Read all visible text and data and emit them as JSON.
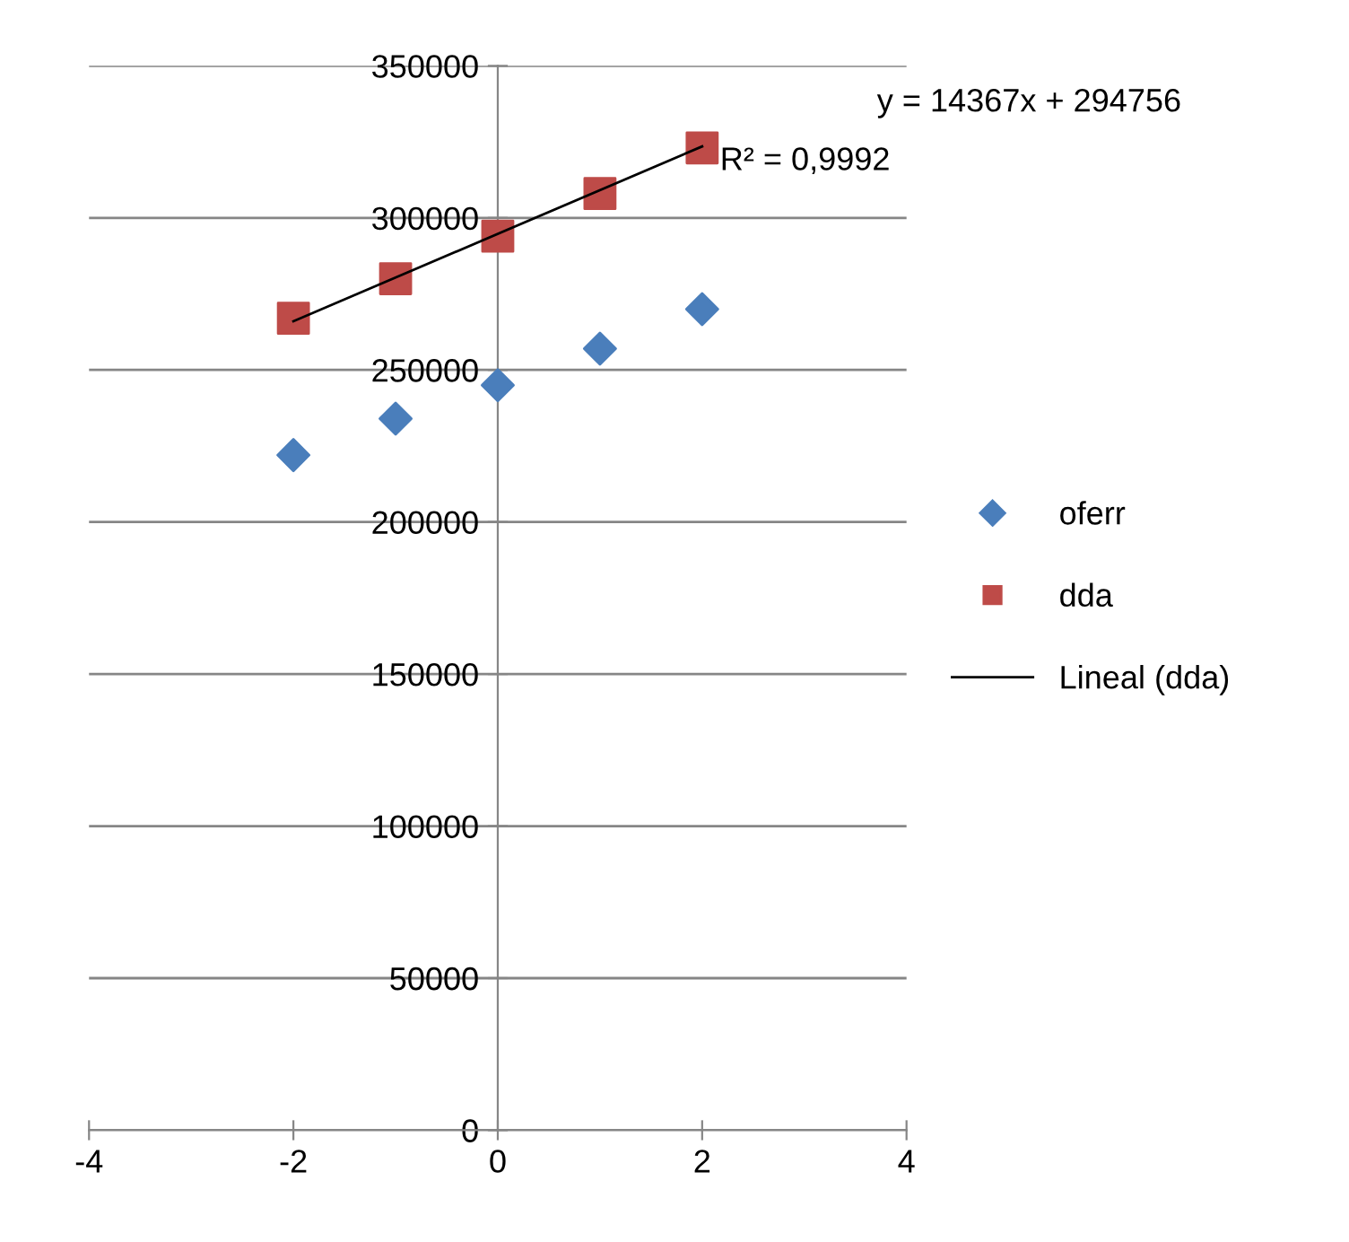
{
  "chart_data": {
    "type": "scatter",
    "xlim": [
      -4,
      4
    ],
    "xticks": [
      -4,
      -2,
      0,
      2,
      4
    ],
    "ylim": [
      0,
      350000
    ],
    "yticks": [
      0,
      50000,
      100000,
      150000,
      200000,
      250000,
      300000,
      350000
    ],
    "grid": "y",
    "legend": "right",
    "series": [
      {
        "name": "oferr",
        "color": "#4a7ebb",
        "marker": "diamond",
        "x": [
          -2,
          -1,
          0,
          1,
          2
        ],
        "values": [
          222000,
          234000,
          245000,
          257000,
          270000
        ]
      },
      {
        "name": "dda",
        "color": "#be4b48",
        "marker": "square",
        "x": [
          -2,
          -1,
          0,
          1,
          2
        ],
        "values": [
          267000,
          280000,
          294000,
          308000,
          323000
        ]
      },
      {
        "name": "Lineal (dda)",
        "type": "line",
        "color": "#000000",
        "marker": "none",
        "x": [
          -2,
          2
        ],
        "values": [
          266000,
          323500
        ]
      }
    ],
    "annotations": [
      "y = 14367x + 294756",
      "R² = 0,9992"
    ]
  }
}
